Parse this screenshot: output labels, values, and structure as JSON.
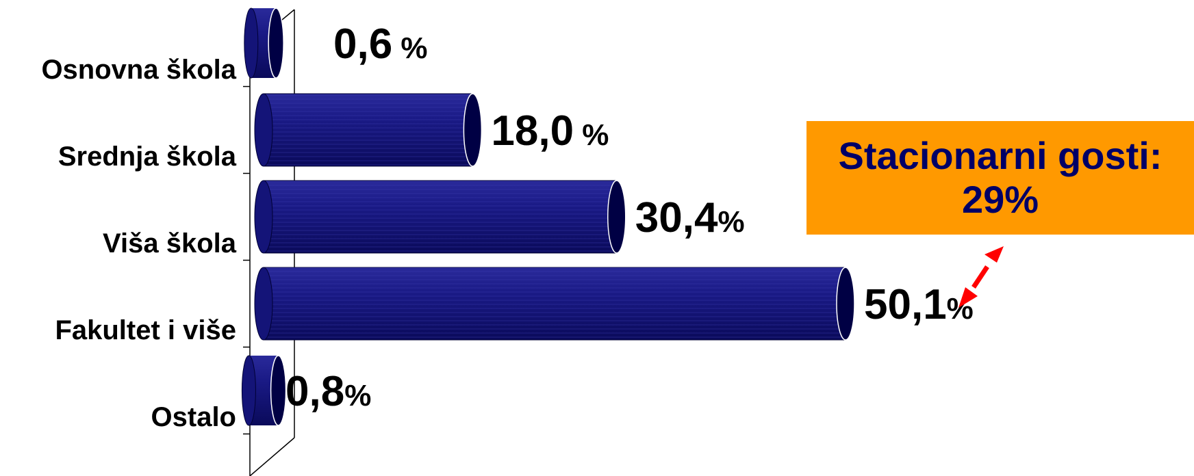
{
  "chart_data": {
    "type": "bar",
    "orientation": "horizontal",
    "style": "3d-cylinder",
    "categories": [
      "Osnovna škola",
      "Srednja škola",
      "Viša škola",
      "Fakultet i više",
      "Ostalo"
    ],
    "values": [
      0.6,
      18.0,
      30.4,
      50.1,
      0.8
    ],
    "value_labels": [
      {
        "number": "0,6",
        "unit": " %"
      },
      {
        "number": "18,0",
        "unit": " %"
      },
      {
        "number": "30,4",
        "unit": "%"
      },
      {
        "number": "50,1",
        "unit": "%"
      },
      {
        "number": "0,8",
        "unit": "%"
      }
    ],
    "xlim": [
      0,
      50.1
    ],
    "bar_color": "#000066",
    "grid": false
  },
  "callout": {
    "line1": "Stacionarni gosti:",
    "line2": "29%",
    "background": "#ff9900",
    "text_color": "#000066"
  },
  "arrow": {
    "color": "#ff0000",
    "style": "double-headed"
  }
}
